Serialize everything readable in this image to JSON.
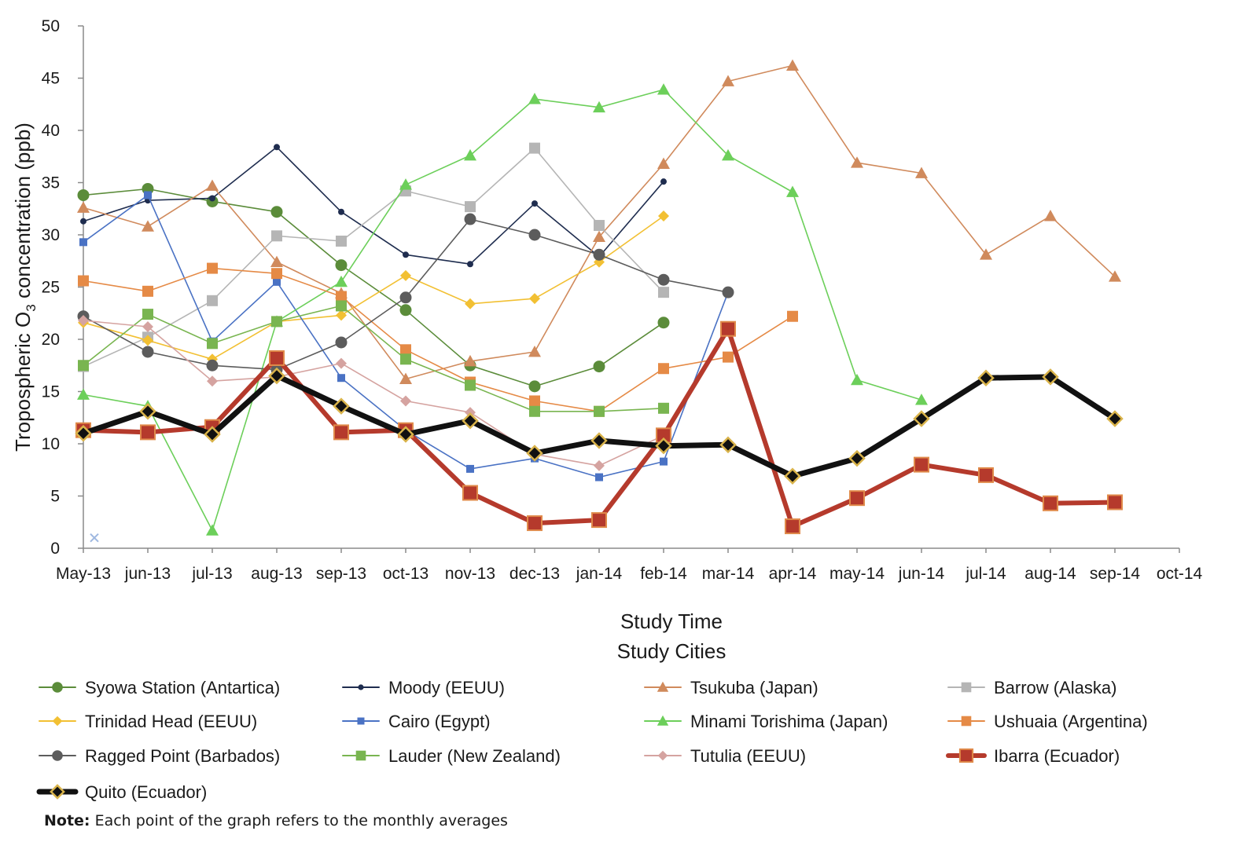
{
  "chart_data": {
    "type": "line",
    "title": "",
    "xlabel": "Study Time",
    "ylabel_prefix": "Tropospheric O",
    "ylabel_subscript": "3",
    "ylabel_suffix": " concentration (ppb)",
    "legend_title": "Study Cities",
    "ylim": [
      0,
      50
    ],
    "yticks": [
      0,
      5,
      10,
      15,
      20,
      25,
      30,
      35,
      40,
      45,
      50
    ],
    "categories": [
      "May-13",
      "jun-13",
      "jul-13",
      "aug-13",
      "sep-13",
      "oct-13",
      "nov-13",
      "dec-13",
      "jan-14",
      "feb-14",
      "mar-14",
      "apr-14",
      "may-14",
      "jun-14",
      "jul-14",
      "aug-14",
      "sep-14",
      "oct-14"
    ],
    "grid": false,
    "legend_position": "bottom",
    "series": [
      {
        "name": "Syowa Station (Antartica)",
        "color": "#5b8c3a",
        "marker": "circle",
        "width": 1.6,
        "values": [
          33.8,
          34.4,
          33.2,
          32.2,
          27.1,
          22.8,
          17.5,
          15.5,
          17.4,
          21.6,
          null,
          null,
          null,
          null,
          null,
          null,
          null,
          null
        ]
      },
      {
        "name": "Moody (EEUU)",
        "color": "#1f2d4f",
        "marker": "dot",
        "width": 1.6,
        "values": [
          31.3,
          33.3,
          33.5,
          38.4,
          32.2,
          28.1,
          27.2,
          33.0,
          27.9,
          35.1,
          null,
          null,
          null,
          null,
          null,
          null,
          null,
          null
        ]
      },
      {
        "name": "Tsukuba (Japan)",
        "color": "#d08a5c",
        "marker": "triangle",
        "width": 1.6,
        "values": [
          32.6,
          30.8,
          34.7,
          27.4,
          24.4,
          16.2,
          17.9,
          18.8,
          29.8,
          36.8,
          44.7,
          46.2,
          36.9,
          35.9,
          28.1,
          31.8,
          26.0,
          null
        ]
      },
      {
        "name": "Barrow (Alaska)",
        "color": "#b5b5b5",
        "marker": "square",
        "width": 1.6,
        "values": [
          17.4,
          20.2,
          23.7,
          29.9,
          29.4,
          34.2,
          32.7,
          38.3,
          30.9,
          24.5,
          null,
          null,
          null,
          null,
          null,
          null,
          null,
          null
        ]
      },
      {
        "name": "Trinidad Head (EEUU)",
        "color": "#f2c033",
        "marker": "diamond",
        "width": 1.6,
        "values": [
          21.6,
          19.9,
          18.1,
          21.7,
          22.3,
          26.1,
          23.4,
          23.9,
          27.4,
          31.8,
          null,
          null,
          null,
          null,
          null,
          null,
          null,
          null
        ]
      },
      {
        "name": "Cairo (Egypt)",
        "color": "#4a72c4",
        "marker": "square-small",
        "width": 1.6,
        "values": [
          29.3,
          33.8,
          19.8,
          25.5,
          16.3,
          11.3,
          7.6,
          8.6,
          6.8,
          8.3,
          24.5,
          null,
          null,
          null,
          null,
          null,
          null,
          null
        ]
      },
      {
        "name": "Minami Torishima (Japan)",
        "color": "#6ccf5a",
        "marker": "triangle",
        "width": 1.6,
        "values": [
          14.7,
          13.6,
          1.7,
          21.7,
          25.5,
          34.8,
          37.6,
          43.0,
          42.2,
          43.9,
          37.6,
          34.1,
          16.1,
          14.2,
          null,
          null,
          null,
          null
        ]
      },
      {
        "name": "Ushuaia (Argentina)",
        "color": "#e58a46",
        "marker": "square",
        "width": 1.6,
        "values": [
          25.6,
          24.6,
          26.8,
          26.3,
          24.1,
          19.0,
          15.9,
          14.1,
          13.1,
          17.2,
          18.3,
          22.2,
          null,
          null,
          null,
          null,
          null,
          null
        ]
      },
      {
        "name": "Ragged Point (Barbados)",
        "color": "#5c5c5c",
        "marker": "circle",
        "width": 1.6,
        "values": [
          22.2,
          18.8,
          17.5,
          17.1,
          19.7,
          24.0,
          31.5,
          30.0,
          28.1,
          25.7,
          24.5,
          null,
          null,
          null,
          null,
          null,
          null,
          null
        ]
      },
      {
        "name": "Lauder (New Zealand)",
        "color": "#79b550",
        "marker": "square",
        "width": 1.6,
        "values": [
          17.5,
          22.4,
          19.6,
          21.7,
          23.2,
          18.1,
          15.6,
          13.1,
          13.1,
          13.4,
          null,
          null,
          null,
          null,
          null,
          null,
          null,
          null
        ]
      },
      {
        "name": "Tutulia (EEUU)",
        "color": "#d5a3a0",
        "marker": "diamond",
        "width": 1.6,
        "values": [
          21.8,
          21.2,
          16.0,
          16.4,
          17.7,
          14.1,
          13.0,
          9.0,
          7.9,
          10.8,
          null,
          null,
          null,
          null,
          null,
          null,
          null,
          null
        ]
      },
      {
        "name": "Ibarra (Ecuador)",
        "color": "#b53a2c",
        "marker": "square-big",
        "width": 6,
        "values": [
          11.3,
          11.1,
          11.6,
          18.2,
          11.1,
          11.3,
          5.3,
          2.4,
          2.7,
          10.8,
          21.0,
          2.1,
          4.8,
          8.0,
          7.0,
          4.3,
          4.4,
          null
        ]
      },
      {
        "name": "Quito (Ecuador)",
        "color": "#111111",
        "marker": "diamond-gold",
        "width": 7,
        "values": [
          11.0,
          13.1,
          10.9,
          16.5,
          13.6,
          10.9,
          12.2,
          9.1,
          10.3,
          9.8,
          9.9,
          6.9,
          8.6,
          12.4,
          16.3,
          16.4,
          12.4,
          null
        ]
      }
    ],
    "stray_point": {
      "marker": "x",
      "color": "#9fb8e0",
      "x": "May-13",
      "y": 1.0
    }
  },
  "note": {
    "bold": "Note:",
    "text": " Each point of the graph refers to the monthly averages"
  }
}
